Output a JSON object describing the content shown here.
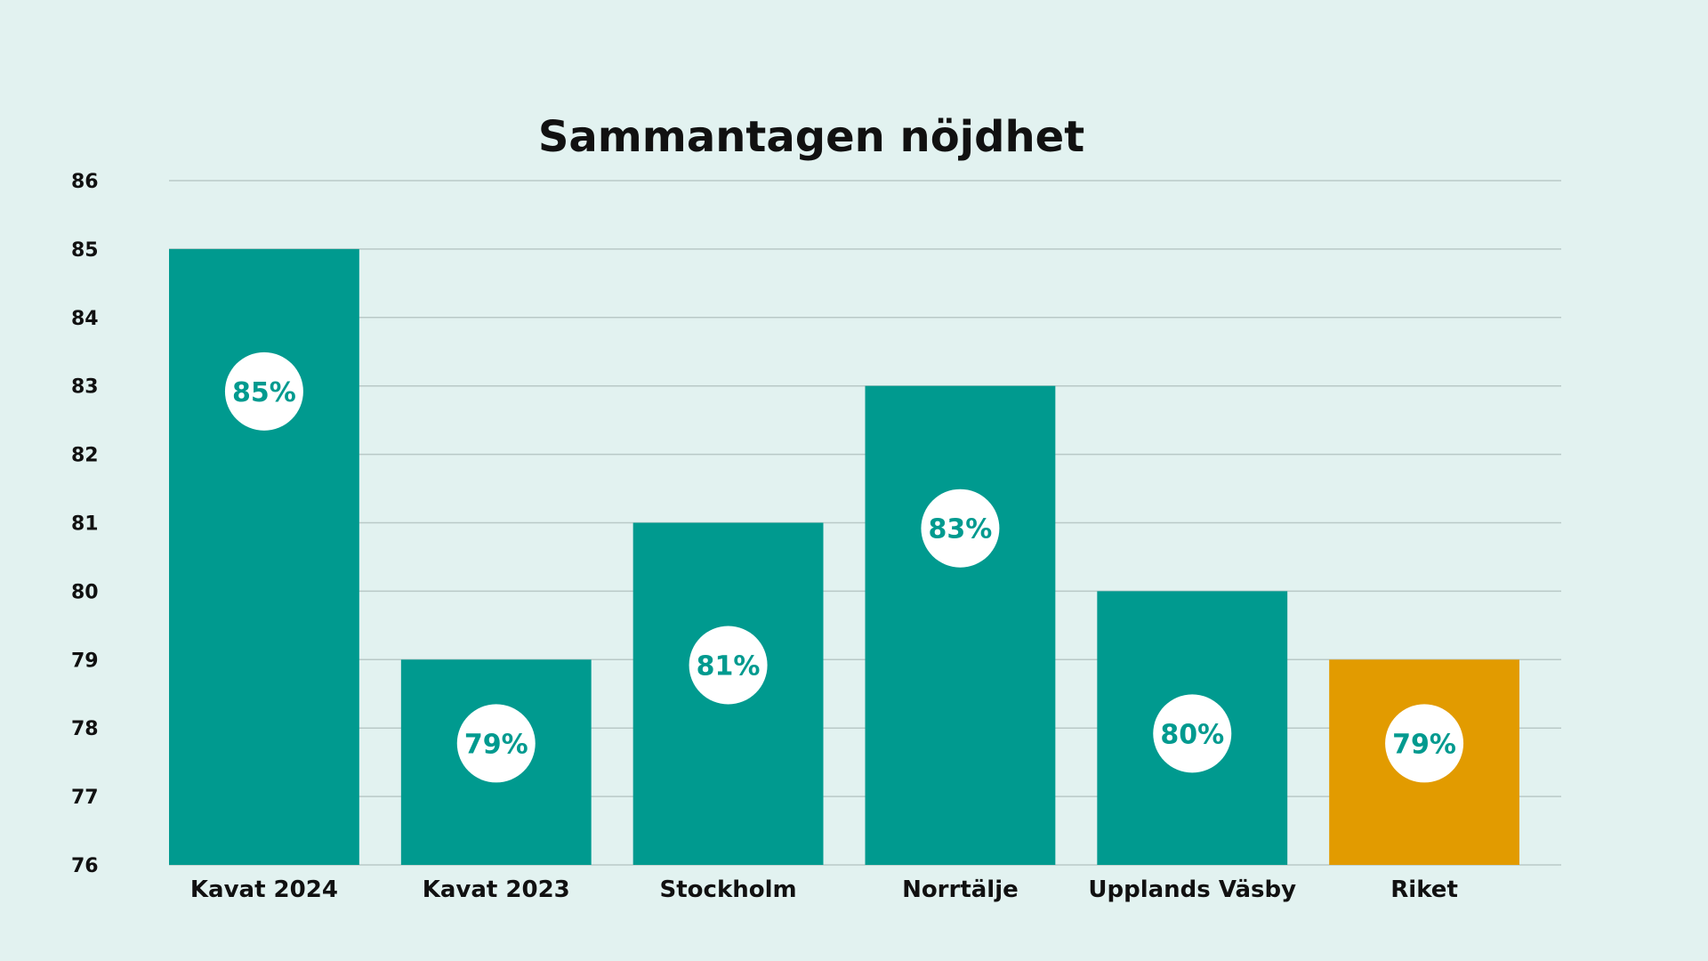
{
  "chart_data": {
    "type": "bar",
    "title": "Sammantagen nöjdhet",
    "xlabel": "",
    "ylabel": "",
    "ylim": [
      76,
      86
    ],
    "yticks": [
      "86",
      "85",
      "84",
      "83",
      "82",
      "81",
      "80",
      "79",
      "78",
      "77",
      "76"
    ],
    "grid": true,
    "legend": "none",
    "categories": [
      "Kavat 2024",
      "Kavat 2023",
      "Stockholm",
      "Norrtälje",
      "Upplands Väsby",
      "Riket"
    ],
    "values": [
      85,
      79,
      81,
      83,
      80,
      79
    ],
    "data_labels": [
      "85%",
      "79%",
      "81%",
      "83%",
      "80%",
      "79%"
    ],
    "colors": [
      "#009a8f",
      "#009a8f",
      "#009a8f",
      "#009a8f",
      "#009a8f",
      "#e29b00"
    ],
    "background_color": "#e2f2f0",
    "label_circle_color": "#ffffff",
    "label_text_color": "#009a8f"
  }
}
